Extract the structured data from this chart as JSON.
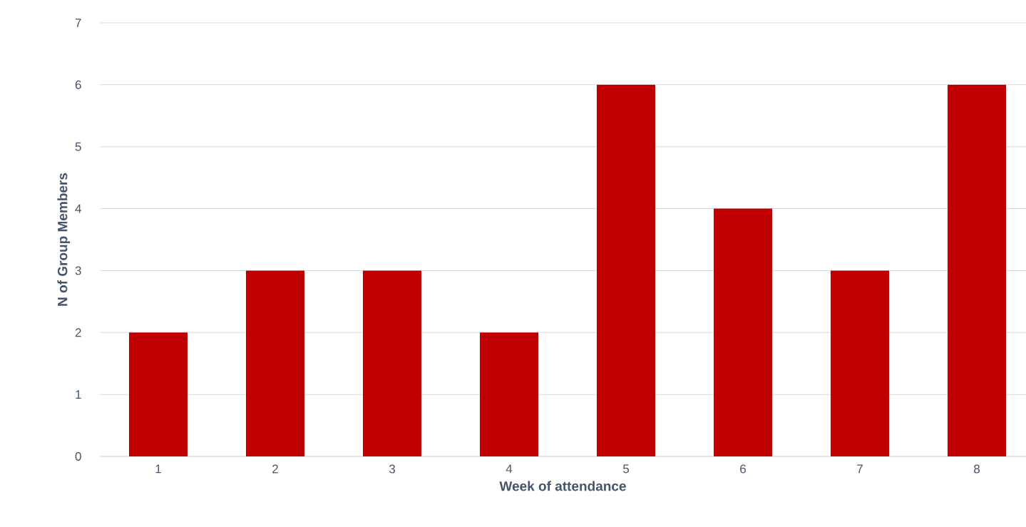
{
  "chart_data": {
    "type": "bar",
    "xlabel": "Week of attendance",
    "ylabel": "N of Group Members",
    "categories": [
      "1",
      "2",
      "3",
      "4",
      "5",
      "6",
      "7",
      "8"
    ],
    "values": [
      2,
      3,
      3,
      2,
      6,
      4,
      3,
      6
    ],
    "color": "#c00000",
    "ylim": [
      0,
      7
    ],
    "yticks": [
      0,
      1,
      2,
      3,
      4,
      5,
      6,
      7
    ],
    "grid": "y"
  }
}
